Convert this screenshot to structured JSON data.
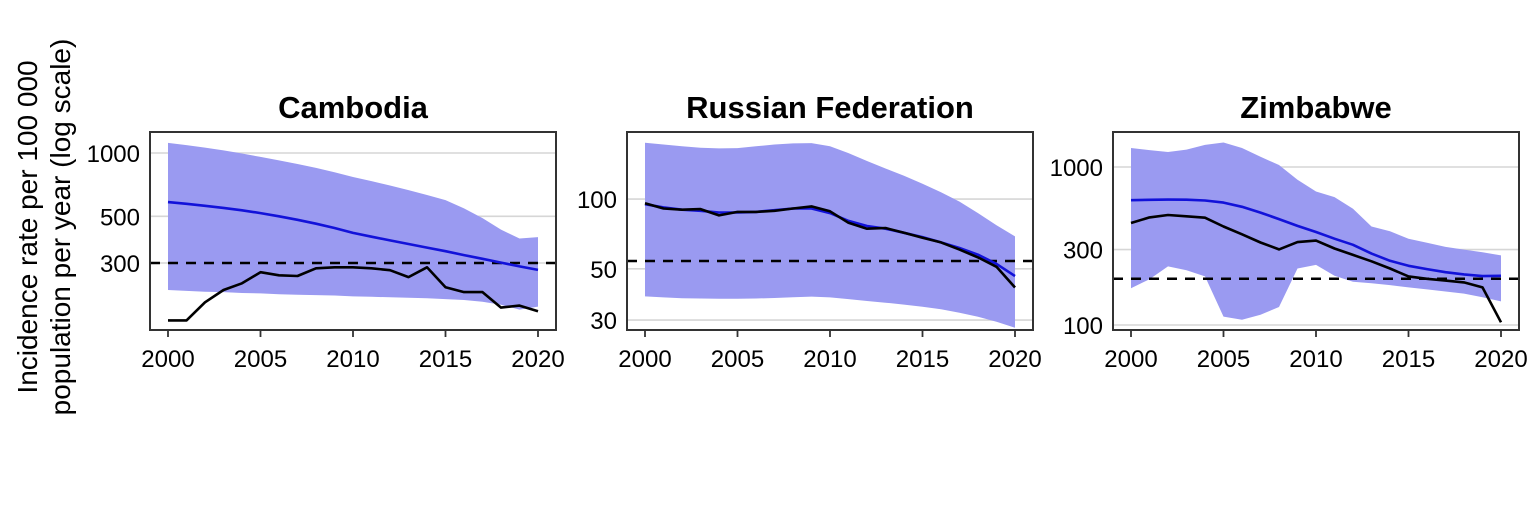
{
  "y_axis_label": {
    "line1": "Incidence rate per 100 000",
    "line2": "population per year (log scale)"
  },
  "colors": {
    "background": "#ffffff",
    "ribbon": "#9a9af1",
    "estimate_line": "#1212d9",
    "observed_line": "#000000",
    "dashed_line": "#000000",
    "gridline": "#d6d6d6",
    "panel_border": "#333333",
    "tick_mark": "#333333",
    "text": "#000000"
  },
  "chart_data": [
    {
      "type": "line",
      "title": "Cambodia",
      "yscale": "log10",
      "x": [
        2000,
        2001,
        2002,
        2003,
        2004,
        2005,
        2006,
        2007,
        2008,
        2009,
        2010,
        2011,
        2012,
        2013,
        2014,
        2015,
        2016,
        2017,
        2018,
        2019,
        2020
      ],
      "xticks": [
        2000,
        2005,
        2010,
        2015,
        2020
      ],
      "yticks": [
        1000,
        500,
        300
      ],
      "ylim": [
        144,
        1258
      ],
      "dashed_reference": 300,
      "grid": "horizontal-only",
      "legend": "none",
      "band": {
        "name": "uncertainty-interval",
        "upper": [
          1117,
          1090,
          1060,
          1028,
          994,
          958,
          922,
          886,
          849,
          810,
          769,
          735,
          700,
          666,
          631,
          597,
          545,
          490,
          432,
          392,
          398
        ],
        "lower": [
          223,
          221,
          219,
          218,
          216,
          215,
          213,
          212,
          211,
          210,
          208,
          207,
          206,
          205,
          204,
          202,
          200,
          196,
          190,
          180,
          186
        ]
      },
      "series": [
        {
          "name": "estimate",
          "color_role": "estimate_line",
          "values": [
            584,
            573,
            561,
            548,
            534,
            518,
            500,
            481,
            461,
            440,
            417,
            400,
            384,
            369,
            355,
            341,
            327,
            314,
            301,
            289,
            278
          ]
        },
        {
          "name": "observed",
          "color_role": "observed_line",
          "values": [
            160,
            160,
            195,
            223,
            240,
            271,
            262,
            260,
            283,
            286,
            286,
            283,
            277,
            257,
            286,
            230,
            218,
            218,
            184,
            188,
            177
          ]
        }
      ]
    },
    {
      "type": "line",
      "title": "Russian Federation",
      "yscale": "log10",
      "x": [
        2000,
        2001,
        2002,
        2003,
        2004,
        2005,
        2006,
        2007,
        2008,
        2009,
        2010,
        2011,
        2012,
        2013,
        2014,
        2015,
        2016,
        2017,
        2018,
        2019,
        2020
      ],
      "xticks": [
        2000,
        2005,
        2010,
        2015,
        2020
      ],
      "yticks": [
        100,
        50,
        30
      ],
      "ylim": [
        27.2,
        194.8
      ],
      "dashed_reference": 54,
      "grid": "horizontal-only",
      "legend": "none",
      "band": {
        "name": "uncertainty-interval",
        "upper": [
          175,
          172,
          169,
          166.5,
          165.5,
          166,
          169,
          172,
          174,
          174.5,
          169,
          158,
          146,
          135.5,
          126,
          116.5,
          107,
          97.5,
          87,
          77,
          69
        ],
        "lower": [
          38,
          37.6,
          37.3,
          37.2,
          37.1,
          37.1,
          37.2,
          37.4,
          37.7,
          37.9,
          37.6,
          37,
          36.3,
          35.7,
          35,
          34.3,
          33.4,
          32.3,
          31,
          29.5,
          27.8
        ]
      },
      "series": [
        {
          "name": "estimate",
          "color_role": "estimate_line",
          "values": [
            95,
            92,
            90,
            89,
            87.5,
            87.5,
            88,
            89.5,
            91,
            91,
            87,
            80.5,
            76.5,
            74.5,
            71.5,
            68.5,
            65,
            61.5,
            57.5,
            52.5,
            46.5
          ]
        },
        {
          "name": "observed",
          "color_role": "observed_line",
          "values": [
            96,
            91,
            90,
            90.5,
            85,
            88,
            88,
            89,
            91,
            93,
            88.5,
            79,
            74.5,
            75,
            71.5,
            68,
            65,
            60.5,
            56,
            51,
            41.5
          ]
        }
      ]
    },
    {
      "type": "line",
      "title": "Zimbabwe",
      "yscale": "log10",
      "x": [
        2000,
        2001,
        2002,
        2003,
        2004,
        2005,
        2006,
        2007,
        2008,
        2009,
        2010,
        2011,
        2012,
        2013,
        2014,
        2015,
        2016,
        2017,
        2018,
        2019,
        2020
      ],
      "xticks": [
        2000,
        2005,
        2010,
        2015,
        2020
      ],
      "yticks": [
        1000,
        300,
        100
      ],
      "ylim": [
        93,
        1666
      ],
      "dashed_reference": 196,
      "grid": "horizontal-only",
      "legend": "none",
      "band": {
        "name": "uncertainty-interval",
        "upper": [
          1320,
          1280,
          1245,
          1290,
          1380,
          1430,
          1320,
          1160,
          1030,
          830,
          700,
          645,
          545,
          420,
          392,
          352,
          332,
          312,
          300,
          289,
          276
        ],
        "lower": [
          171,
          195,
          235,
          222,
          203,
          113,
          108,
          116,
          130,
          228,
          240,
          205,
          188,
          184,
          179,
          173,
          168,
          163,
          158,
          150,
          141
        ]
      },
      "series": [
        {
          "name": "estimate",
          "color_role": "estimate_line",
          "values": [
            617,
            620,
            622,
            621,
            614,
            595,
            560,
            515,
            468,
            424,
            388,
            352,
            322,
            283,
            255,
            237,
            226,
            216,
            209,
            204,
            205
          ]
        },
        {
          "name": "observed",
          "color_role": "observed_line",
          "values": [
            442,
            480,
            497,
            488,
            478,
            420,
            375,
            333,
            301,
            335,
            342,
            305,
            278,
            253,
            228,
            203,
            196,
            191,
            186,
            173,
            104
          ]
        }
      ]
    }
  ]
}
